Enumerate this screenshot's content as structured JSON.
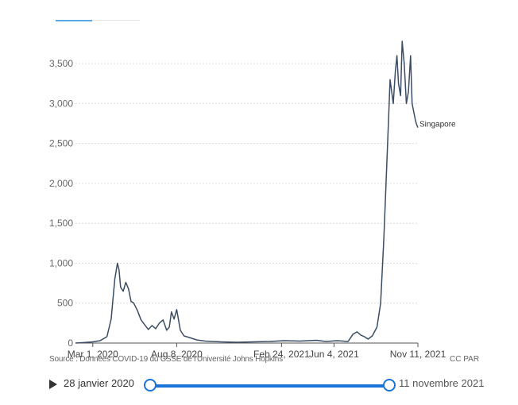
{
  "chart_data": {
    "type": "line",
    "series": [
      {
        "name": "Singapore",
        "x": [
          "2020-01-28",
          "2020-02-10",
          "2020-02-20",
          "2020-03-01",
          "2020-03-15",
          "2020-03-28",
          "2020-04-05",
          "2020-04-12",
          "2020-04-17",
          "2020-04-20",
          "2020-04-23",
          "2020-04-28",
          "2020-05-03",
          "2020-05-08",
          "2020-05-13",
          "2020-05-18",
          "2020-05-25",
          "2020-06-01",
          "2020-06-08",
          "2020-06-15",
          "2020-06-22",
          "2020-06-29",
          "2020-07-06",
          "2020-07-13",
          "2020-07-20",
          "2020-07-25",
          "2020-07-29",
          "2020-08-03",
          "2020-08-08",
          "2020-08-15",
          "2020-08-22",
          "2020-09-01",
          "2020-09-15",
          "2020-10-01",
          "2020-11-01",
          "2020-12-01",
          "2021-01-01",
          "2021-02-01",
          "2021-03-01",
          "2021-04-01",
          "2021-05-01",
          "2021-05-20",
          "2021-06-10",
          "2021-07-01",
          "2021-07-10",
          "2021-07-18",
          "2021-07-25",
          "2021-08-01",
          "2021-08-08",
          "2021-08-16",
          "2021-08-25",
          "2021-09-01",
          "2021-09-07",
          "2021-09-13",
          "2021-09-19",
          "2021-09-25",
          "2021-09-29",
          "2021-10-02",
          "2021-10-05",
          "2021-10-09",
          "2021-10-12",
          "2021-10-16",
          "2021-10-20",
          "2021-10-24",
          "2021-10-28",
          "2021-10-31",
          "2021-11-03",
          "2021-11-06",
          "2021-11-08",
          "2021-11-11"
        ],
        "values": [
          0,
          5,
          10,
          15,
          30,
          80,
          300,
          800,
          1000,
          920,
          700,
          650,
          760,
          680,
          520,
          500,
          410,
          290,
          230,
          170,
          220,
          180,
          250,
          290,
          160,
          200,
          390,
          300,
          420,
          160,
          90,
          70,
          40,
          25,
          15,
          10,
          15,
          20,
          30,
          25,
          35,
          20,
          30,
          20,
          110,
          140,
          100,
          80,
          50,
          90,
          200,
          500,
          1300,
          2300,
          3300,
          3000,
          3400,
          3600,
          3250,
          3100,
          3780,
          3500,
          3000,
          3150,
          3600,
          3000,
          2900,
          2800,
          2750,
          2700
        ]
      }
    ],
    "end_label": "Singapore",
    "x_ticks": [
      "Mar 1, 2020",
      "Aug 8, 2020",
      "Feb 24, 2021",
      "Jun 4, 2021",
      "Nov 11, 2021"
    ],
    "x_tick_dates": [
      "2020-03-01",
      "2020-08-08",
      "2021-02-24",
      "2021-06-04",
      "2021-11-11"
    ],
    "x_range": [
      "2020-01-28",
      "2021-11-11"
    ],
    "y_ticks": [
      0,
      500,
      1000,
      1500,
      2000,
      2500,
      3000,
      3500
    ],
    "y_tick_labels": [
      "0",
      "500",
      "1,000",
      "1,500",
      "2,000",
      "2,500",
      "3,000",
      "3,500"
    ],
    "ylim": [
      0,
      3800
    ],
    "grid": "horizontal-dotted",
    "line_color": "#3b4d63",
    "title": "",
    "xlabel": "",
    "ylabel": ""
  },
  "footer": {
    "source": "Source : Données COVID-19 du CSSE de l'Université Johns Hopkins",
    "license": "CC PAR"
  },
  "timeline": {
    "start_label": "28 janvier 2020",
    "end_label": "11 novembre 2021",
    "accent_color": "#1a73d8"
  }
}
